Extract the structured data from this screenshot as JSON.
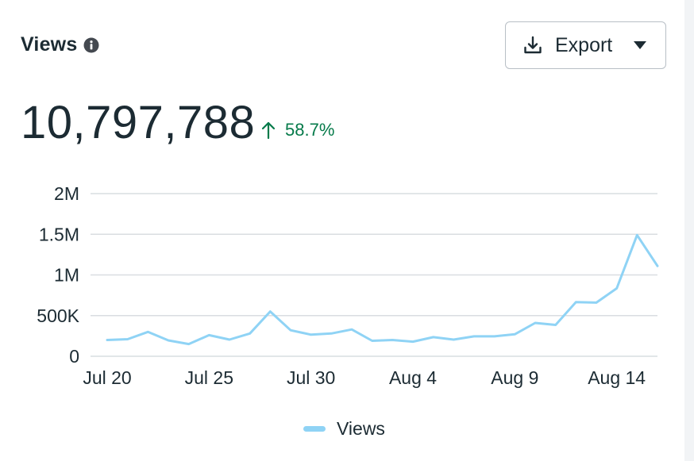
{
  "header": {
    "title": "Views",
    "info_icon": "info-circle-icon",
    "export": {
      "label": "Export",
      "icon": "download-icon",
      "caret": "caret-down-icon"
    }
  },
  "summary": {
    "total": "10,797,788",
    "change": "58.7%",
    "change_icon": "arrow-up-icon",
    "change_color": "#067a4a"
  },
  "colors": {
    "line": "#8fd3f5",
    "grid": "#d9dde1",
    "text": "#1c2b33"
  },
  "chart_data": {
    "type": "line",
    "x": [
      "Jul 20",
      "Jul 21",
      "Jul 22",
      "Jul 23",
      "Jul 24",
      "Jul 25",
      "Jul 26",
      "Jul 27",
      "Jul 28",
      "Jul 29",
      "Jul 30",
      "Jul 31",
      "Aug 1",
      "Aug 2",
      "Aug 3",
      "Aug 4",
      "Aug 5",
      "Aug 6",
      "Aug 7",
      "Aug 8",
      "Aug 9",
      "Aug 10",
      "Aug 11",
      "Aug 12",
      "Aug 13",
      "Aug 14",
      "Aug 15",
      "Aug 16"
    ],
    "x_tick_labels": [
      "Jul 20",
      "Jul 25",
      "Jul 30",
      "Aug 4",
      "Aug 9",
      "Aug 14"
    ],
    "x_tick_indices": [
      0,
      5,
      10,
      15,
      20,
      25
    ],
    "y_ticks": [
      0,
      500000,
      1000000,
      1500000,
      2000000
    ],
    "y_tick_labels": [
      "0",
      "500K",
      "1M",
      "1.5M",
      "2M"
    ],
    "ylim": [
      0,
      2000000
    ],
    "grid": true,
    "legend": "bottom-center",
    "series": [
      {
        "name": "Views",
        "values": [
          200000,
          210000,
          300000,
          195000,
          150000,
          260000,
          205000,
          280000,
          550000,
          320000,
          265000,
          280000,
          330000,
          190000,
          200000,
          180000,
          235000,
          205000,
          245000,
          245000,
          270000,
          410000,
          385000,
          665000,
          660000,
          835000,
          1490000,
          1110000
        ]
      }
    ]
  }
}
